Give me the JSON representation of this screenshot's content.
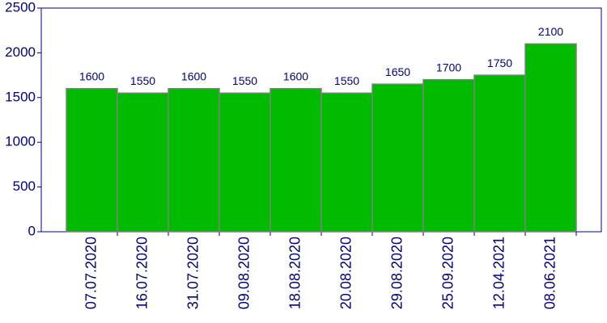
{
  "chart_data": {
    "type": "bar",
    "categories": [
      "07.07.2020",
      "16.07.2020",
      "31.07.2020",
      "09.08.2020",
      "18.08.2020",
      "20.08.2020",
      "29.08.2020",
      "25.09.2020",
      "12.04.2021",
      "08.06.2021"
    ],
    "values": [
      1600,
      1550,
      1600,
      1550,
      1600,
      1550,
      1650,
      1700,
      1750,
      2100
    ],
    "color": "#00bb00",
    "ylim": [
      0,
      2500
    ],
    "yticks": [
      0,
      500,
      1000,
      1500,
      2000,
      2500
    ]
  }
}
